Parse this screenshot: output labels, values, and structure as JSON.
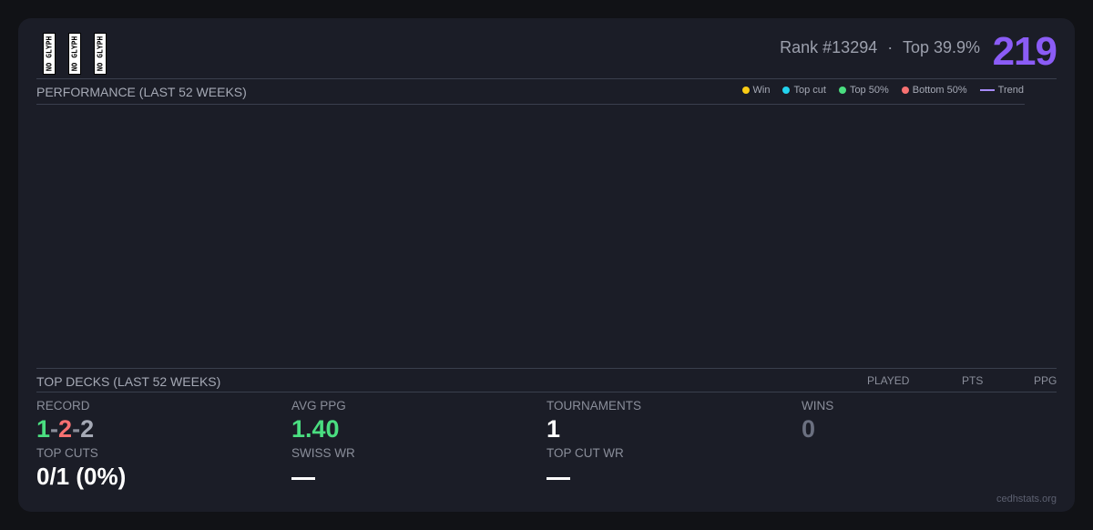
{
  "header": {
    "glyph_placeholder": "NO GLYPH",
    "rank": "Rank #13294",
    "separator": "·",
    "top_percent": "Top 39.9%",
    "score": "219"
  },
  "performance": {
    "title": "PERFORMANCE (LAST 52 WEEKS)",
    "legend": [
      {
        "label": "Win",
        "color": "#facc15"
      },
      {
        "label": "Top cut",
        "color": "#22d3ee"
      },
      {
        "label": "Top 50%",
        "color": "#4ade80"
      },
      {
        "label": "Bottom 50%",
        "color": "#f87171"
      },
      {
        "label": "Trend",
        "color": "#a78bfa"
      }
    ]
  },
  "top_decks": {
    "title": "TOP DECKS (LAST 52 WEEKS)",
    "columns": [
      "PLAYED",
      "PTS",
      "PPG"
    ]
  },
  "stats": {
    "record_label": "RECORD",
    "record_wins": "1",
    "record_losses": "2",
    "record_draws": "2",
    "record_sep": "-",
    "avg_ppg_label": "AVG PPG",
    "avg_ppg": "1.40",
    "tournaments_label": "TOURNAMENTS",
    "tournaments": "1",
    "wins_label": "WINS",
    "wins": "0",
    "top_cuts_label": "TOP CUTS",
    "top_cuts": "0/1 (0%)",
    "swiss_wr_label": "SWISS WR",
    "top_cut_wr_label": "TOP CUT WR"
  },
  "footer": "cedhstats.org"
}
